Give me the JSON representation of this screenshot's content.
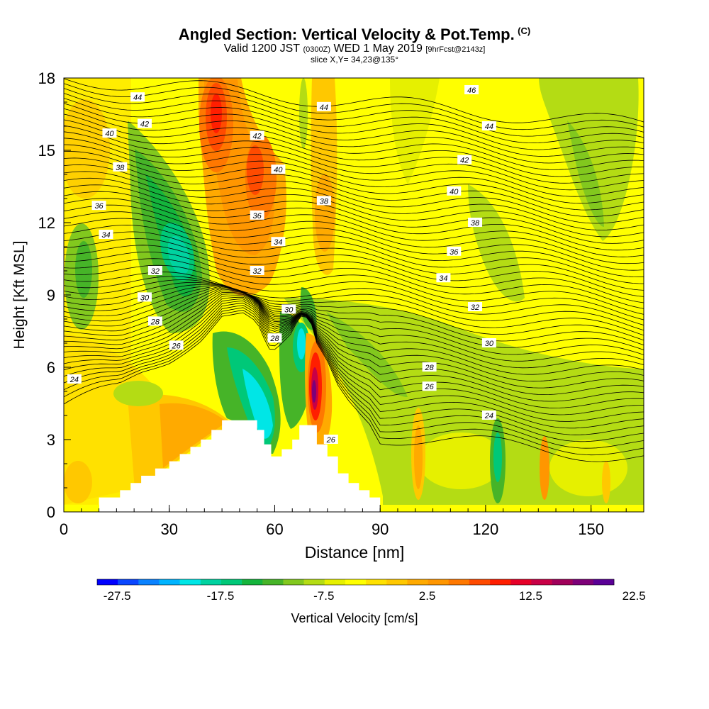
{
  "chart_data": {
    "type": "heatmap",
    "title": "Angled Section: Vertical Velocity & Pot.Temp.",
    "title_unit": "(C)",
    "subtitle": {
      "valid": "Valid 1200 JST",
      "utc": "(0300Z)",
      "date": "WED 1 May 2019",
      "forecast": "[9hrFcst@2143z]"
    },
    "slice_label": "slice X,Y= 34,23@135°",
    "xlabel": "Distance [nm]",
    "ylabel": "Height [Kft MSL]",
    "xlim": [
      0,
      165
    ],
    "ylim": [
      0,
      18
    ],
    "x_ticks": [
      "0",
      "30",
      "60",
      "90",
      "120",
      "150"
    ],
    "y_ticks": [
      "0",
      "3",
      "6",
      "9",
      "12",
      "15",
      "18"
    ],
    "grid": false,
    "colorbar": {
      "label": "Vertical Velocity [cm/s]",
      "tick_labels": [
        "-27.5",
        "-17.5",
        "-7.5",
        "2.5",
        "12.5",
        "22.5"
      ],
      "colors": [
        "#0000ff",
        "#0a46ff",
        "#0a82ff",
        "#00b4ff",
        "#00e6e6",
        "#00d2a0",
        "#00c878",
        "#14b43c",
        "#46b428",
        "#82c81e",
        "#b4dc14",
        "#e6f000",
        "#ffff00",
        "#ffe100",
        "#ffc800",
        "#ffaa00",
        "#ff9600",
        "#ff7800",
        "#ff4b00",
        "#ff1e00",
        "#e60028",
        "#c80046",
        "#a0005a",
        "#7d0078",
        "#5a0096"
      ]
    },
    "terrain_profile": {
      "x": [
        0,
        10,
        16,
        19,
        22,
        26,
        30,
        33,
        36,
        39,
        42,
        45,
        48,
        51,
        55,
        57,
        59,
        62,
        65,
        67,
        70,
        72,
        75,
        78,
        81,
        84,
        87,
        90
      ],
      "y": [
        0,
        0.6,
        0.9,
        1.2,
        1.5,
        1.8,
        2.1,
        2.4,
        2.7,
        3.0,
        3.4,
        3.8,
        3.8,
        3.8,
        3.4,
        2.8,
        2.3,
        2.6,
        3.0,
        3.6,
        3.6,
        2.8,
        2.3,
        1.6,
        1.2,
        0.9,
        0.6,
        0
      ]
    },
    "isentropes_theta": [
      24,
      26,
      28,
      30,
      32,
      34,
      36,
      38,
      40,
      42,
      44,
      46
    ],
    "contour_labels": [
      {
        "text": "44",
        "x": 21,
        "y": 17.2
      },
      {
        "text": "42",
        "x": 23,
        "y": 16.1
      },
      {
        "text": "40",
        "x": 13,
        "y": 15.7
      },
      {
        "text": "38",
        "x": 16,
        "y": 14.3
      },
      {
        "text": "36",
        "x": 10,
        "y": 12.7
      },
      {
        "text": "34",
        "x": 12,
        "y": 11.5
      },
      {
        "text": "32",
        "x": 26,
        "y": 10.0
      },
      {
        "text": "30",
        "x": 23,
        "y": 8.9
      },
      {
        "text": "28",
        "x": 26,
        "y": 7.9
      },
      {
        "text": "26",
        "x": 32,
        "y": 6.9
      },
      {
        "text": "24",
        "x": 3,
        "y": 5.5
      },
      {
        "text": "42",
        "x": 55,
        "y": 15.6
      },
      {
        "text": "40",
        "x": 61,
        "y": 14.2
      },
      {
        "text": "38",
        "x": 74,
        "y": 12.9
      },
      {
        "text": "36",
        "x": 55,
        "y": 12.3
      },
      {
        "text": "34",
        "x": 61,
        "y": 11.2
      },
      {
        "text": "32",
        "x": 55,
        "y": 10.0
      },
      {
        "text": "30",
        "x": 64,
        "y": 8.4
      },
      {
        "text": "28",
        "x": 60,
        "y": 7.2
      },
      {
        "text": "26",
        "x": 76,
        "y": 3.0
      },
      {
        "text": "44",
        "x": 74,
        "y": 16.8
      },
      {
        "text": "46",
        "x": 116,
        "y": 17.5
      },
      {
        "text": "44",
        "x": 121,
        "y": 16.0
      },
      {
        "text": "42",
        "x": 114,
        "y": 14.6
      },
      {
        "text": "40",
        "x": 111,
        "y": 13.3
      },
      {
        "text": "38",
        "x": 117,
        "y": 12.0
      },
      {
        "text": "36",
        "x": 111,
        "y": 10.8
      },
      {
        "text": "34",
        "x": 108,
        "y": 9.7
      },
      {
        "text": "32",
        "x": 117,
        "y": 8.5
      },
      {
        "text": "30",
        "x": 121,
        "y": 7.0
      },
      {
        "text": "28",
        "x": 104,
        "y": 6.0
      },
      {
        "text": "26",
        "x": 104,
        "y": 5.2
      },
      {
        "text": "24",
        "x": 121,
        "y": 4.0
      }
    ]
  }
}
